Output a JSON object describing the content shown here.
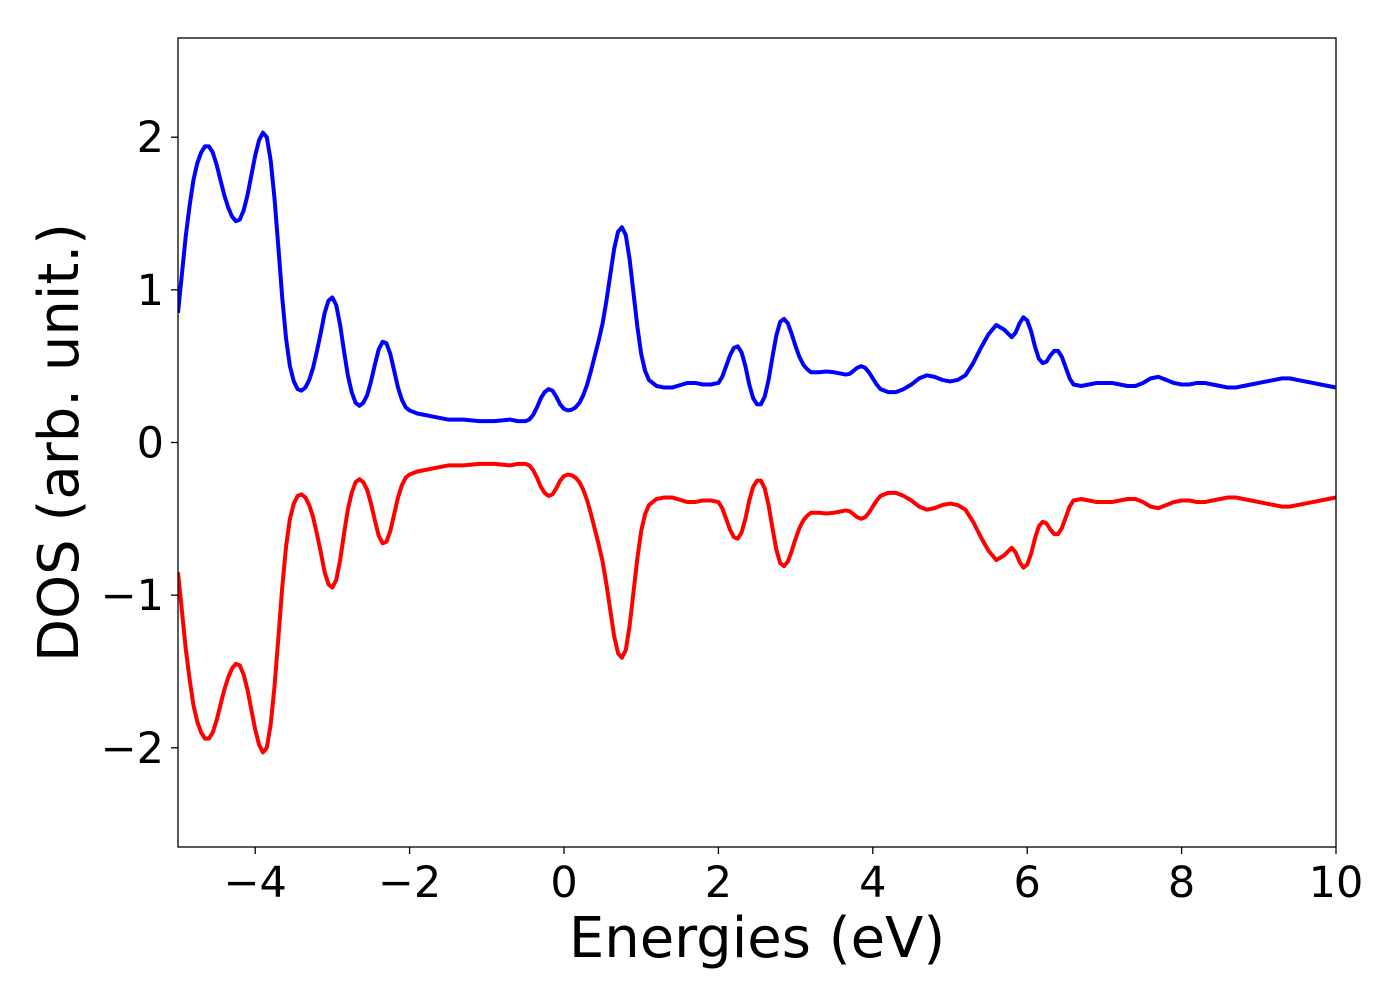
{
  "chart_data": {
    "type": "line",
    "title": "",
    "xlabel": "Energies (eV)",
    "ylabel": "DOS (arb. unit.)",
    "xlim": [
      -5,
      10
    ],
    "ylim": [
      -2.65,
      2.65
    ],
    "x_ticks": [
      -4,
      -2,
      0,
      2,
      4,
      6,
      8,
      10
    ],
    "x_tick_labels": [
      "−4",
      "−2",
      "0",
      "2",
      "4",
      "6",
      "8",
      "10"
    ],
    "y_ticks": [
      2,
      1,
      0,
      -1,
      -2
    ],
    "y_tick_labels": [
      "2",
      "1",
      "0",
      "−1",
      "−2"
    ],
    "grid": false,
    "legend": "none",
    "series": [
      {
        "color": "#0000ff",
        "points": [
          [
            -5.0,
            0.85
          ],
          [
            -4.95,
            1.1
          ],
          [
            -4.9,
            1.35
          ],
          [
            -4.85,
            1.55
          ],
          [
            -4.8,
            1.72
          ],
          [
            -4.75,
            1.83
          ],
          [
            -4.7,
            1.9
          ],
          [
            -4.65,
            1.94
          ],
          [
            -4.6,
            1.94
          ],
          [
            -4.55,
            1.9
          ],
          [
            -4.5,
            1.82
          ],
          [
            -4.45,
            1.72
          ],
          [
            -4.4,
            1.62
          ],
          [
            -4.35,
            1.54
          ],
          [
            -4.3,
            1.48
          ],
          [
            -4.25,
            1.45
          ],
          [
            -4.2,
            1.46
          ],
          [
            -4.15,
            1.52
          ],
          [
            -4.1,
            1.62
          ],
          [
            -4.05,
            1.75
          ],
          [
            -4.0,
            1.88
          ],
          [
            -3.95,
            1.98
          ],
          [
            -3.9,
            2.03
          ],
          [
            -3.85,
            2.0
          ],
          [
            -3.8,
            1.85
          ],
          [
            -3.75,
            1.6
          ],
          [
            -3.7,
            1.28
          ],
          [
            -3.65,
            0.95
          ],
          [
            -3.6,
            0.68
          ],
          [
            -3.55,
            0.5
          ],
          [
            -3.5,
            0.4
          ],
          [
            -3.45,
            0.35
          ],
          [
            -3.4,
            0.34
          ],
          [
            -3.35,
            0.36
          ],
          [
            -3.3,
            0.41
          ],
          [
            -3.25,
            0.49
          ],
          [
            -3.2,
            0.6
          ],
          [
            -3.15,
            0.72
          ],
          [
            -3.1,
            0.85
          ],
          [
            -3.05,
            0.93
          ],
          [
            -3.0,
            0.95
          ],
          [
            -2.95,
            0.9
          ],
          [
            -2.9,
            0.77
          ],
          [
            -2.85,
            0.6
          ],
          [
            -2.8,
            0.44
          ],
          [
            -2.75,
            0.33
          ],
          [
            -2.7,
            0.26
          ],
          [
            -2.65,
            0.24
          ],
          [
            -2.6,
            0.26
          ],
          [
            -2.55,
            0.31
          ],
          [
            -2.5,
            0.4
          ],
          [
            -2.45,
            0.51
          ],
          [
            -2.4,
            0.61
          ],
          [
            -2.35,
            0.66
          ],
          [
            -2.3,
            0.65
          ],
          [
            -2.25,
            0.58
          ],
          [
            -2.2,
            0.47
          ],
          [
            -2.15,
            0.36
          ],
          [
            -2.1,
            0.28
          ],
          [
            -2.05,
            0.23
          ],
          [
            -2.0,
            0.21
          ],
          [
            -1.9,
            0.19
          ],
          [
            -1.8,
            0.18
          ],
          [
            -1.7,
            0.17
          ],
          [
            -1.6,
            0.16
          ],
          [
            -1.5,
            0.15
          ],
          [
            -1.4,
            0.15
          ],
          [
            -1.3,
            0.15
          ],
          [
            -1.2,
            0.145
          ],
          [
            -1.1,
            0.14
          ],
          [
            -1.0,
            0.14
          ],
          [
            -0.9,
            0.14
          ],
          [
            -0.8,
            0.145
          ],
          [
            -0.7,
            0.15
          ],
          [
            -0.6,
            0.14
          ],
          [
            -0.5,
            0.14
          ],
          [
            -0.45,
            0.15
          ],
          [
            -0.4,
            0.18
          ],
          [
            -0.35,
            0.23
          ],
          [
            -0.3,
            0.29
          ],
          [
            -0.25,
            0.33
          ],
          [
            -0.2,
            0.35
          ],
          [
            -0.15,
            0.34
          ],
          [
            -0.1,
            0.3
          ],
          [
            -0.05,
            0.25
          ],
          [
            0.0,
            0.22
          ],
          [
            0.05,
            0.21
          ],
          [
            0.1,
            0.215
          ],
          [
            0.15,
            0.23
          ],
          [
            0.2,
            0.26
          ],
          [
            0.25,
            0.31
          ],
          [
            0.3,
            0.38
          ],
          [
            0.35,
            0.47
          ],
          [
            0.4,
            0.57
          ],
          [
            0.45,
            0.67
          ],
          [
            0.5,
            0.78
          ],
          [
            0.55,
            0.93
          ],
          [
            0.6,
            1.1
          ],
          [
            0.65,
            1.27
          ],
          [
            0.7,
            1.38
          ],
          [
            0.75,
            1.41
          ],
          [
            0.8,
            1.36
          ],
          [
            0.85,
            1.2
          ],
          [
            0.9,
            0.98
          ],
          [
            0.95,
            0.76
          ],
          [
            1.0,
            0.58
          ],
          [
            1.05,
            0.47
          ],
          [
            1.1,
            0.41
          ],
          [
            1.2,
            0.37
          ],
          [
            1.3,
            0.36
          ],
          [
            1.4,
            0.36
          ],
          [
            1.5,
            0.375
          ],
          [
            1.6,
            0.39
          ],
          [
            1.7,
            0.39
          ],
          [
            1.8,
            0.38
          ],
          [
            1.9,
            0.38
          ],
          [
            2.0,
            0.39
          ],
          [
            2.05,
            0.43
          ],
          [
            2.1,
            0.5
          ],
          [
            2.15,
            0.57
          ],
          [
            2.2,
            0.62
          ],
          [
            2.25,
            0.63
          ],
          [
            2.3,
            0.59
          ],
          [
            2.35,
            0.5
          ],
          [
            2.4,
            0.38
          ],
          [
            2.45,
            0.29
          ],
          [
            2.5,
            0.25
          ],
          [
            2.55,
            0.25
          ],
          [
            2.6,
            0.3
          ],
          [
            2.65,
            0.41
          ],
          [
            2.7,
            0.56
          ],
          [
            2.75,
            0.7
          ],
          [
            2.8,
            0.79
          ],
          [
            2.85,
            0.81
          ],
          [
            2.9,
            0.78
          ],
          [
            2.95,
            0.71
          ],
          [
            3.0,
            0.63
          ],
          [
            3.05,
            0.56
          ],
          [
            3.1,
            0.51
          ],
          [
            3.15,
            0.48
          ],
          [
            3.2,
            0.46
          ],
          [
            3.3,
            0.46
          ],
          [
            3.4,
            0.465
          ],
          [
            3.5,
            0.46
          ],
          [
            3.6,
            0.45
          ],
          [
            3.65,
            0.445
          ],
          [
            3.7,
            0.45
          ],
          [
            3.75,
            0.47
          ],
          [
            3.8,
            0.49
          ],
          [
            3.85,
            0.5
          ],
          [
            3.9,
            0.49
          ],
          [
            3.95,
            0.46
          ],
          [
            4.0,
            0.42
          ],
          [
            4.05,
            0.38
          ],
          [
            4.1,
            0.35
          ],
          [
            4.2,
            0.33
          ],
          [
            4.3,
            0.33
          ],
          [
            4.4,
            0.35
          ],
          [
            4.5,
            0.38
          ],
          [
            4.6,
            0.42
          ],
          [
            4.7,
            0.44
          ],
          [
            4.8,
            0.43
          ],
          [
            4.9,
            0.41
          ],
          [
            5.0,
            0.4
          ],
          [
            5.1,
            0.41
          ],
          [
            5.2,
            0.44
          ],
          [
            5.3,
            0.52
          ],
          [
            5.4,
            0.62
          ],
          [
            5.5,
            0.71
          ],
          [
            5.6,
            0.77
          ],
          [
            5.7,
            0.74
          ],
          [
            5.8,
            0.69
          ],
          [
            5.85,
            0.72
          ],
          [
            5.9,
            0.78
          ],
          [
            5.95,
            0.82
          ],
          [
            6.0,
            0.8
          ],
          [
            6.05,
            0.73
          ],
          [
            6.1,
            0.63
          ],
          [
            6.15,
            0.55
          ],
          [
            6.2,
            0.52
          ],
          [
            6.25,
            0.53
          ],
          [
            6.3,
            0.57
          ],
          [
            6.35,
            0.6
          ],
          [
            6.4,
            0.6
          ],
          [
            6.45,
            0.56
          ],
          [
            6.5,
            0.49
          ],
          [
            6.55,
            0.42
          ],
          [
            6.6,
            0.38
          ],
          [
            6.7,
            0.37
          ],
          [
            6.8,
            0.38
          ],
          [
            6.9,
            0.39
          ],
          [
            7.0,
            0.39
          ],
          [
            7.1,
            0.39
          ],
          [
            7.2,
            0.38
          ],
          [
            7.3,
            0.37
          ],
          [
            7.4,
            0.37
          ],
          [
            7.5,
            0.39
          ],
          [
            7.6,
            0.42
          ],
          [
            7.7,
            0.43
          ],
          [
            7.8,
            0.41
          ],
          [
            7.9,
            0.39
          ],
          [
            8.0,
            0.38
          ],
          [
            8.1,
            0.38
          ],
          [
            8.2,
            0.39
          ],
          [
            8.3,
            0.39
          ],
          [
            8.4,
            0.38
          ],
          [
            8.5,
            0.37
          ],
          [
            8.6,
            0.36
          ],
          [
            8.7,
            0.36
          ],
          [
            8.8,
            0.37
          ],
          [
            8.9,
            0.38
          ],
          [
            9.0,
            0.39
          ],
          [
            9.1,
            0.4
          ],
          [
            9.2,
            0.41
          ],
          [
            9.3,
            0.42
          ],
          [
            9.4,
            0.42
          ],
          [
            9.5,
            0.41
          ],
          [
            9.6,
            0.4
          ],
          [
            9.7,
            0.39
          ],
          [
            9.8,
            0.38
          ],
          [
            9.9,
            0.37
          ],
          [
            10.0,
            0.36
          ]
        ]
      },
      {
        "color": "#ff0000",
        "mirror_of_first": true
      }
    ]
  }
}
